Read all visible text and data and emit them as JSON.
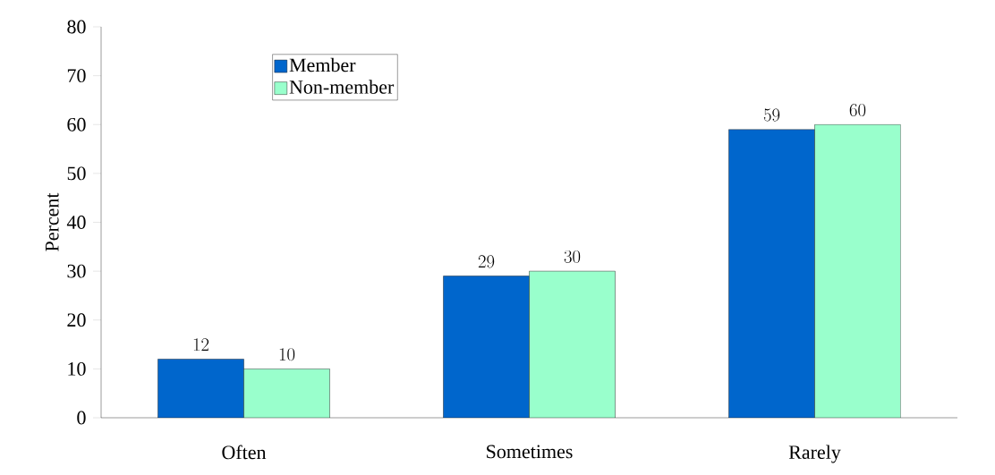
{
  "chart_data": {
    "type": "bar",
    "ylabel": "Percent",
    "categories": [
      "Often",
      "Sometimes",
      "Rarely"
    ],
    "series": [
      {
        "name": "Member",
        "color": "#0066cc",
        "values": [
          12,
          29,
          59
        ]
      },
      {
        "name": "Non-member",
        "color": "#99ffcc",
        "values": [
          10,
          30,
          60
        ]
      }
    ],
    "ylim": [
      0,
      80
    ],
    "yticks": [
      0,
      10,
      20,
      30,
      40,
      50,
      60,
      70,
      80
    ],
    "data_labels": true,
    "legend": "top left",
    "grid": false
  }
}
